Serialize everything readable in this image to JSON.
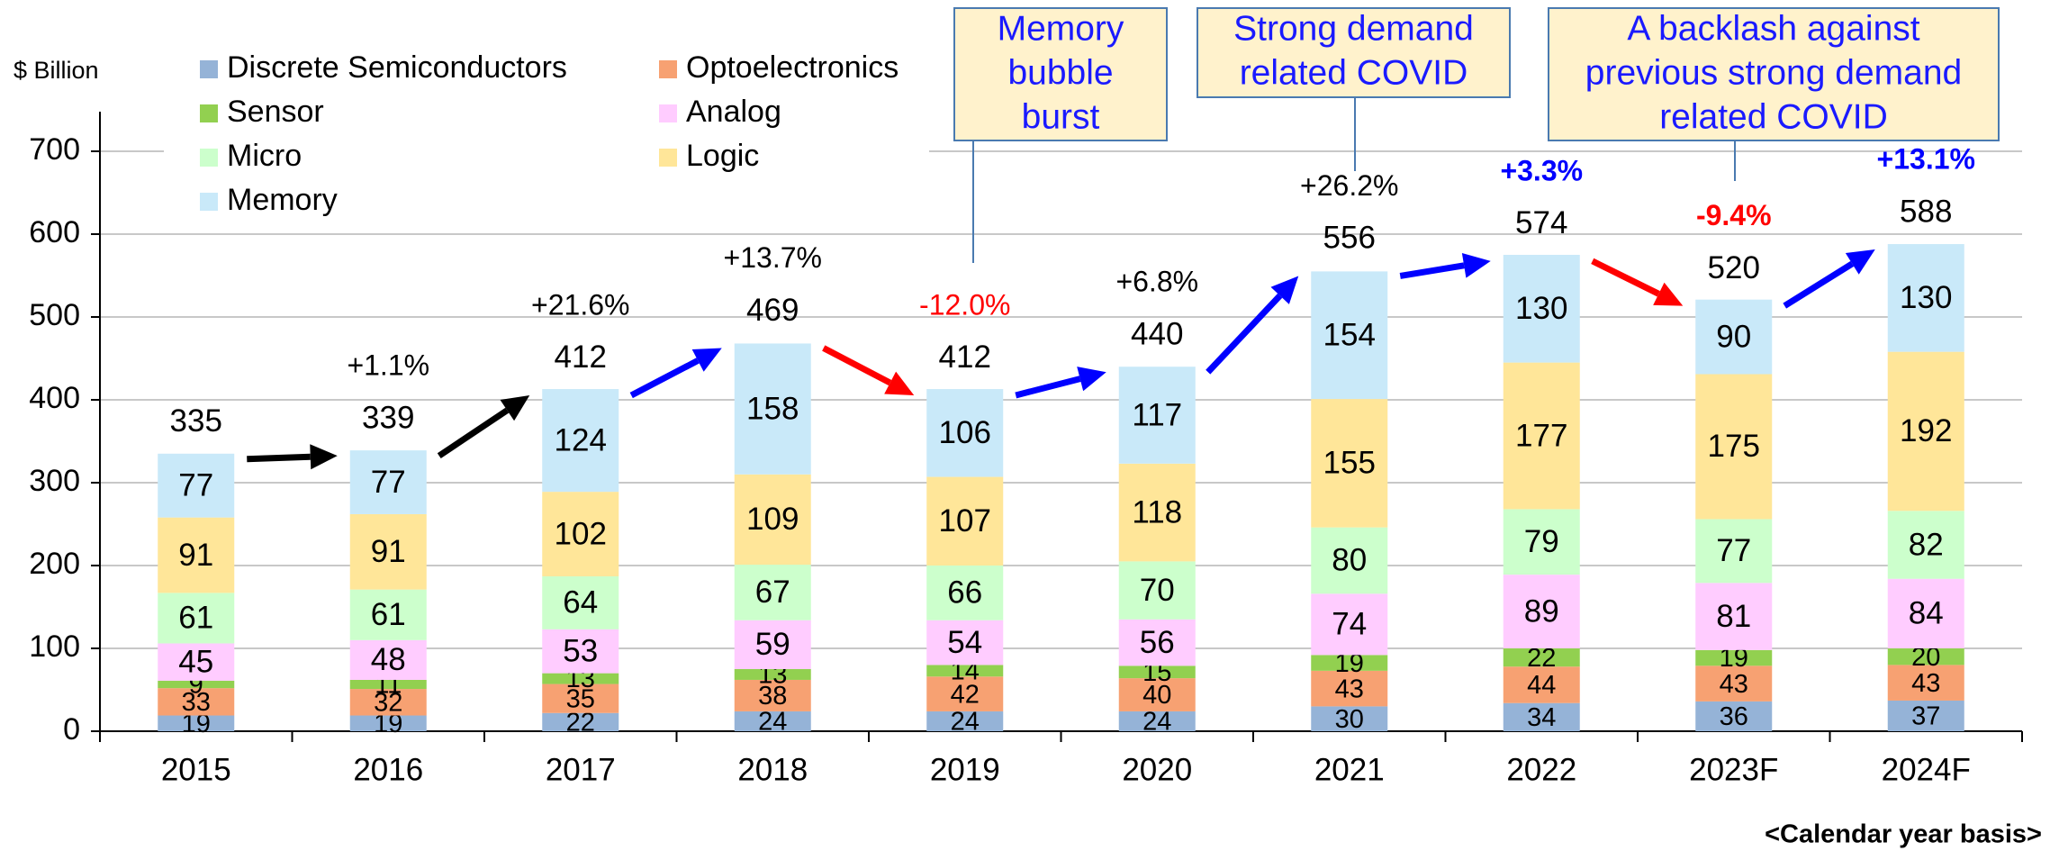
{
  "chart_data": {
    "type": "stacked_bar",
    "y_unit_label": "$ Billion",
    "footnote": "<Calendar year basis>",
    "categories": [
      "2015",
      "2016",
      "2017",
      "2018",
      "2019",
      "2020",
      "2021",
      "2022",
      "2023F",
      "2024F"
    ],
    "series": [
      {
        "name": "Discrete Semiconductors",
        "color": "#95b3d7",
        "values": [
          19,
          19,
          22,
          24,
          24,
          24,
          30,
          34,
          36,
          37
        ]
      },
      {
        "name": "Optoelectronics",
        "color": "#f7a172",
        "values": [
          33,
          32,
          35,
          38,
          42,
          40,
          43,
          44,
          43,
          43
        ]
      },
      {
        "name": "Sensor",
        "color": "#92d050",
        "values": [
          9,
          11,
          13,
          13,
          14,
          15,
          19,
          22,
          19,
          20
        ]
      },
      {
        "name": "Analog",
        "color": "#ffccff",
        "values": [
          45,
          48,
          53,
          59,
          54,
          56,
          74,
          89,
          81,
          84
        ]
      },
      {
        "name": "Micro",
        "color": "#ccffcc",
        "values": [
          61,
          61,
          64,
          67,
          66,
          70,
          80,
          79,
          77,
          82
        ]
      },
      {
        "name": "Logic",
        "color": "#ffe699",
        "values": [
          91,
          91,
          102,
          109,
          107,
          118,
          155,
          177,
          175,
          192
        ]
      },
      {
        "name": "Memory",
        "color": "#c9e9f9",
        "values": [
          77,
          77,
          124,
          158,
          106,
          117,
          154,
          130,
          90,
          130
        ]
      }
    ],
    "totals": [
      335,
      339,
      412,
      469,
      412,
      440,
      556,
      574,
      520,
      588
    ],
    "growth_labels": [
      null,
      "+1.1%",
      "+21.6%",
      "+13.7%",
      "-12.0%",
      "+6.8%",
      "+26.2%",
      "+3.3%",
      "-9.4%",
      "+13.1%"
    ],
    "growth_colors": [
      null,
      "#000000",
      "#000000",
      "#000000",
      "#ff0000",
      "#000000",
      "#000000",
      "#0000ff",
      "#ff0000",
      "#0000ff"
    ],
    "growth_bold": [
      null,
      false,
      false,
      false,
      false,
      false,
      false,
      true,
      true,
      true
    ],
    "arrow_colors": [
      "#000000",
      "#000000",
      "#0000ff",
      "#ff0000",
      "#0000ff",
      "#0000ff",
      "#0000ff",
      "#ff0000",
      "#0000ff"
    ],
    "annotations": [
      {
        "lines": [
          "Memory",
          "bubble",
          "burst"
        ]
      },
      {
        "lines": [
          "Strong demand",
          "related COVID"
        ]
      },
      {
        "lines": [
          "A backlash against",
          "previous strong demand",
          "related COVID"
        ]
      }
    ],
    "ylim": [
      0,
      700
    ],
    "yticks": [
      0,
      100,
      200,
      300,
      400,
      500,
      600,
      700
    ],
    "grid": true
  }
}
